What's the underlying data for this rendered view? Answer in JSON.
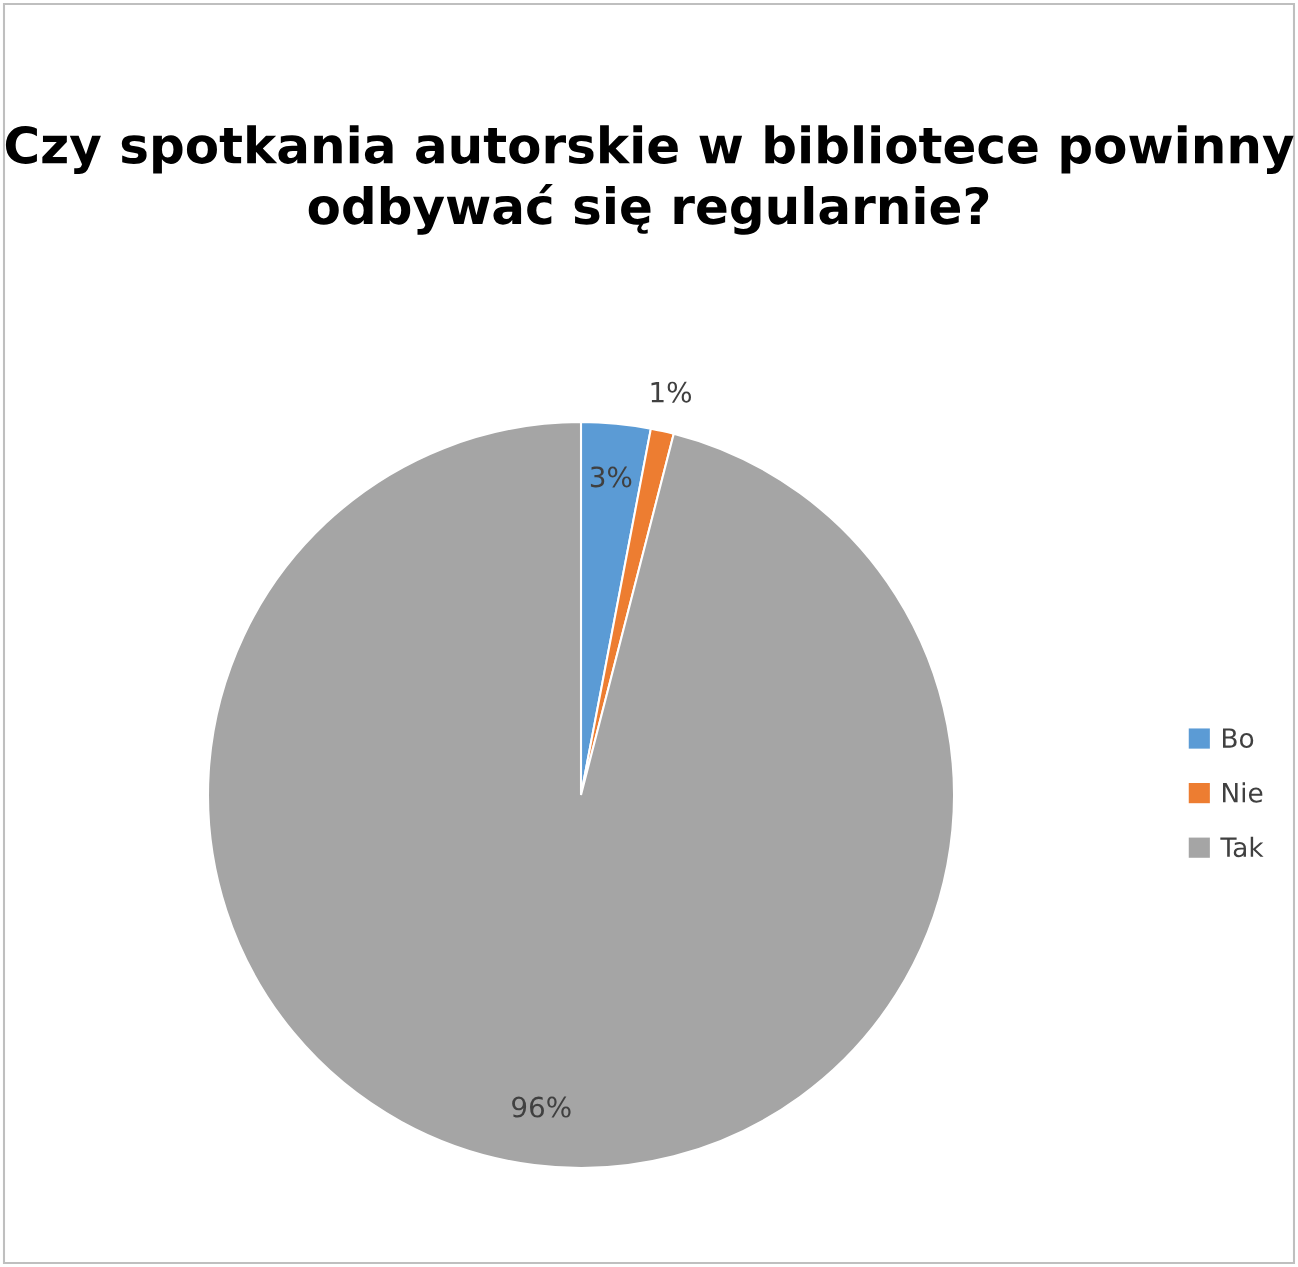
{
  "chart_data": {
    "type": "pie",
    "title": "Czy spotkania autorskie w bibliotece powinny odbywać się regularnie?",
    "categories": [
      "Bo",
      "Nie",
      "Tak"
    ],
    "values": [
      3,
      1,
      96
    ],
    "colors": [
      "#5b9bd5",
      "#ed7d31",
      "#a5a5a5"
    ],
    "value_labels": [
      "3%",
      "1%",
      "96%"
    ],
    "legend": "right"
  }
}
